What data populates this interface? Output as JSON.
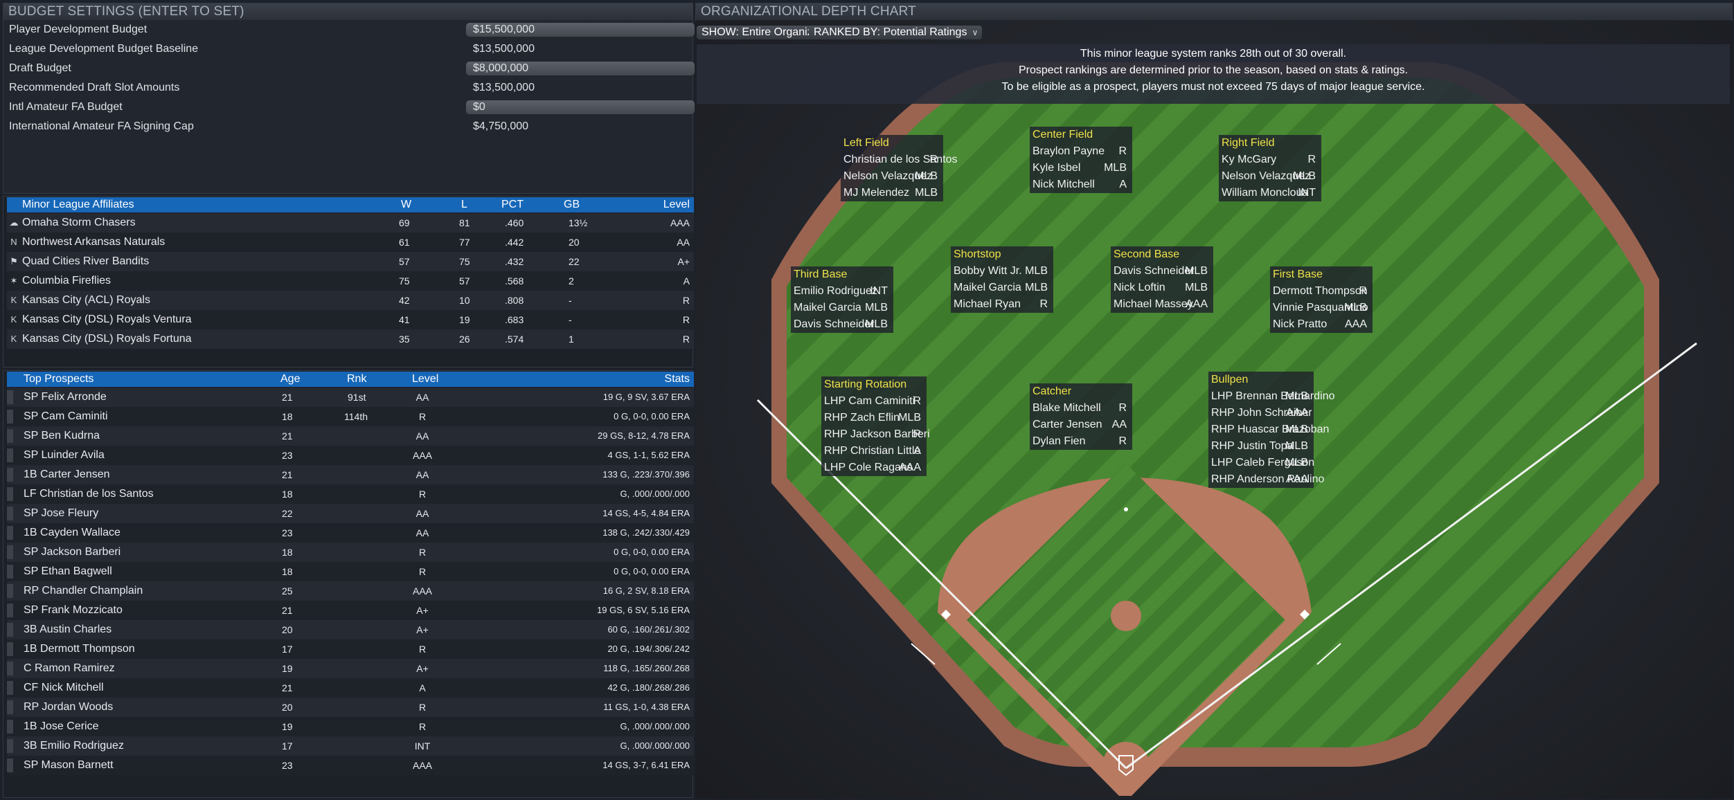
{
  "budget": {
    "title": "BUDGET SETTINGS (ENTER TO SET)",
    "rows": [
      {
        "label": "Player Development Budget",
        "value": "$15,500,000",
        "input": true
      },
      {
        "label": "League Development Budget Baseline",
        "value": "$13,500,000",
        "input": false
      },
      {
        "label": "Draft Budget",
        "value": "$8,000,000",
        "input": true
      },
      {
        "label": "Recommended Draft Slot Amounts",
        "value": "$13,500,000",
        "input": false
      },
      {
        "label": "Intl Amateur FA Budget",
        "value": "$0",
        "input": true
      },
      {
        "label": "International Amateur FA Signing Cap",
        "value": "$4,750,000",
        "input": false
      }
    ]
  },
  "affiliates": {
    "headers": {
      "team": "Minor League Affiliates",
      "w": "W",
      "l": "L",
      "pct": "PCT",
      "gb": "GB",
      "level": "Level"
    },
    "rows": [
      {
        "team": "Omaha Storm Chasers",
        "w": "69",
        "l": "81",
        "pct": ".460",
        "gb": "13½",
        "level": "AAA",
        "icon": "storm-chasers-logo"
      },
      {
        "team": "Northwest Arkansas Naturals",
        "w": "61",
        "l": "77",
        "pct": ".442",
        "gb": "20",
        "level": "AA",
        "icon": "naturals-logo"
      },
      {
        "team": "Quad Cities River Bandits",
        "w": "57",
        "l": "75",
        "pct": ".432",
        "gb": "22",
        "level": "A+",
        "icon": "river-bandits-logo"
      },
      {
        "team": "Columbia Fireflies",
        "w": "75",
        "l": "57",
        "pct": ".568",
        "gb": "2",
        "level": "A",
        "icon": "fireflies-logo"
      },
      {
        "team": "Kansas City (ACL) Royals",
        "w": "42",
        "l": "10",
        "pct": ".808",
        "gb": "-",
        "level": "R",
        "icon": "royals-kc-logo"
      },
      {
        "team": "Kansas City (DSL) Royals Ventura",
        "w": "41",
        "l": "19",
        "pct": ".683",
        "gb": "-",
        "level": "R",
        "icon": "royals-kc-logo"
      },
      {
        "team": "Kansas City (DSL) Royals Fortuna",
        "w": "35",
        "l": "26",
        "pct": ".574",
        "gb": "1",
        "level": "R",
        "icon": "royals-kc-logo"
      }
    ]
  },
  "prospects": {
    "headers": {
      "name": "Top Prospects",
      "age": "Age",
      "rnk": "Rnk",
      "level": "Level",
      "stats": "Stats"
    },
    "rows": [
      {
        "name": "SP Felix Arronde",
        "age": "21",
        "rnk": "91st",
        "level": "AA",
        "stats": "19 G, 9 SV, 3.67 ERA"
      },
      {
        "name": "SP Cam Caminiti",
        "age": "18",
        "rnk": "114th",
        "level": "R",
        "stats": "0 G, 0-0, 0.00 ERA"
      },
      {
        "name": "SP Ben Kudrna",
        "age": "21",
        "rnk": "",
        "level": "AA",
        "stats": "29 GS, 8-12, 4.78 ERA"
      },
      {
        "name": "SP Luinder Avila",
        "age": "23",
        "rnk": "",
        "level": "AAA",
        "stats": "4 GS, 1-1, 5.62 ERA"
      },
      {
        "name": "1B Carter Jensen",
        "age": "21",
        "rnk": "",
        "level": "AA",
        "stats": "133 G, .223/.370/.396"
      },
      {
        "name": "LF Christian de los Santos",
        "age": "18",
        "rnk": "",
        "level": "R",
        "stats": "G, .000/.000/.000"
      },
      {
        "name": "SP Jose Fleury",
        "age": "22",
        "rnk": "",
        "level": "AA",
        "stats": "14 GS, 4-5, 4.84 ERA"
      },
      {
        "name": "1B Cayden Wallace",
        "age": "23",
        "rnk": "",
        "level": "AA",
        "stats": "138 G, .242/.330/.429"
      },
      {
        "name": "SP Jackson Barberi",
        "age": "18",
        "rnk": "",
        "level": "R",
        "stats": "0 G, 0-0, 0.00 ERA"
      },
      {
        "name": "SP Ethan Bagwell",
        "age": "18",
        "rnk": "",
        "level": "R",
        "stats": "0 G, 0-0, 0.00 ERA"
      },
      {
        "name": "RP Chandler Champlain",
        "age": "25",
        "rnk": "",
        "level": "AAA",
        "stats": "16 G, 2 SV, 8.18 ERA"
      },
      {
        "name": "SP Frank Mozzicato",
        "age": "21",
        "rnk": "",
        "level": "A+",
        "stats": "19 GS, 6 SV, 5.16 ERA"
      },
      {
        "name": "3B Austin Charles",
        "age": "20",
        "rnk": "",
        "level": "A+",
        "stats": "60 G, .160/.261/.302"
      },
      {
        "name": "1B Dermott Thompson",
        "age": "17",
        "rnk": "",
        "level": "R",
        "stats": "20 G, .194/.306/.242"
      },
      {
        "name": "C Ramon Ramirez",
        "age": "19",
        "rnk": "",
        "level": "A+",
        "stats": "118 G, .165/.260/.268"
      },
      {
        "name": "CF Nick Mitchell",
        "age": "21",
        "rnk": "",
        "level": "A",
        "stats": "42 G, .180/.268/.286"
      },
      {
        "name": "RP Jordan Woods",
        "age": "20",
        "rnk": "",
        "level": "R",
        "stats": "11 GS, 1-0, 4.38 ERA"
      },
      {
        "name": "1B Jose Cerice",
        "age": "19",
        "rnk": "",
        "level": "R",
        "stats": "G, .000/.000/.000"
      },
      {
        "name": "3B Emilio Rodriguez",
        "age": "17",
        "rnk": "",
        "level": "INT",
        "stats": "G, .000/.000/.000"
      },
      {
        "name": "SP Mason Barnett",
        "age": "23",
        "rnk": "",
        "level": "AAA",
        "stats": "14 GS, 3-7, 6.41 ERA"
      }
    ]
  },
  "depth": {
    "title": "ORGANIZATIONAL DEPTH CHART",
    "show": "SHOW: Entire Organization",
    "ranked": "RANKED BY: Potential Ratings",
    "info": [
      "This minor league system ranks 28th out of 30 overall.",
      "Prospect rankings are determined prior to the season, based on stats & ratings.",
      "To be eligible as a prospect, players must not exceed 75 days of major league service."
    ],
    "positions": {
      "lf": {
        "title": "Left Field",
        "players": [
          {
            "n": "Christian de los Santos",
            "l": "R"
          },
          {
            "n": "Nelson Velazquez",
            "l": "MLB"
          },
          {
            "n": "MJ Melendez",
            "l": "MLB"
          }
        ]
      },
      "cf": {
        "title": "Center Field",
        "players": [
          {
            "n": "Braylon Payne",
            "l": "R"
          },
          {
            "n": "Kyle Isbel",
            "l": "MLB"
          },
          {
            "n": "Nick Mitchell",
            "l": "A"
          }
        ]
      },
      "rf": {
        "title": "Right Field",
        "players": [
          {
            "n": "Ky McGary",
            "l": "R"
          },
          {
            "n": "Nelson Velazquez",
            "l": "MLB"
          },
          {
            "n": "William Moncloua",
            "l": "INT"
          }
        ]
      },
      "ss": {
        "title": "Shortstop",
        "players": [
          {
            "n": "Bobby Witt Jr.",
            "l": "MLB"
          },
          {
            "n": "Maikel Garcia",
            "l": "MLB"
          },
          {
            "n": "Michael Ryan",
            "l": "R"
          }
        ]
      },
      "b2": {
        "title": "Second Base",
        "players": [
          {
            "n": "Davis Schneider",
            "l": "MLB"
          },
          {
            "n": "Nick Loftin",
            "l": "MLB"
          },
          {
            "n": "Michael Massey",
            "l": "AAA"
          }
        ]
      },
      "b3": {
        "title": "Third Base",
        "players": [
          {
            "n": "Emilio Rodriguez",
            "l": "INT"
          },
          {
            "n": "Maikel Garcia",
            "l": "MLB"
          },
          {
            "n": "Davis Schneider",
            "l": "MLB"
          }
        ]
      },
      "b1": {
        "title": "First Base",
        "players": [
          {
            "n": "Dermott Thompson",
            "l": "R"
          },
          {
            "n": "Vinnie Pasquantino",
            "l": "MLB"
          },
          {
            "n": "Nick Pratto",
            "l": "AAA"
          }
        ]
      },
      "sr": {
        "title": "Starting Rotation",
        "players": [
          {
            "n": "LHP Cam Caminiti",
            "l": "R"
          },
          {
            "n": "RHP Zach Eflin",
            "l": "MLB"
          },
          {
            "n": "RHP Jackson Barberi",
            "l": "R"
          },
          {
            "n": "RHP Christian Little",
            "l": "A"
          },
          {
            "n": "LHP Cole Ragans",
            "l": "AAA"
          }
        ]
      },
      "c": {
        "title": "Catcher",
        "players": [
          {
            "n": "Blake Mitchell",
            "l": "R"
          },
          {
            "n": "Carter Jensen",
            "l": "AA"
          },
          {
            "n": "Dylan Fien",
            "l": "R"
          }
        ]
      },
      "bp": {
        "title": "Bullpen",
        "players": [
          {
            "n": "LHP Brennan Bernardino",
            "l": "MLB"
          },
          {
            "n": "RHP John Schreiber",
            "l": "AAA"
          },
          {
            "n": "RHP Huascar Brazoban",
            "l": "MLB"
          },
          {
            "n": "RHP Justin Topa",
            "l": "MLB"
          },
          {
            "n": "LHP Caleb Ferguson",
            "l": "MLB"
          },
          {
            "n": "RHP Anderson Paulino",
            "l": "AAA"
          }
        ]
      }
    }
  },
  "colors": {
    "accent": "#1767b8",
    "title_yellow": "#f0e24a",
    "grass": "#3f7a2c",
    "dirt": "#b67a60"
  }
}
